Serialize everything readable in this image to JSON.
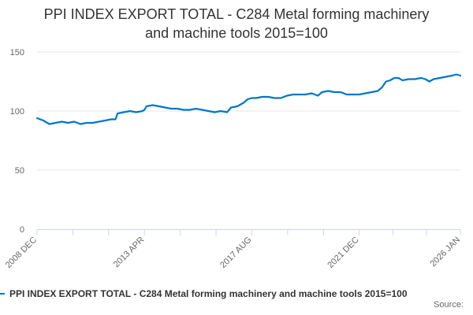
{
  "chart_data": {
    "type": "line",
    "title_lines": [
      "PPI INDEX EXPORT TOTAL - C284 Metal forming machinery",
      "and machine tools 2015=100"
    ],
    "xlabel": "",
    "ylabel": "",
    "ylim": [
      0,
      150
    ],
    "yticks": [
      0,
      50,
      100,
      150
    ],
    "x_start": "2008-12",
    "x_end": "2026-01",
    "xticks": [
      {
        "label": "2008 DEC",
        "date": "2008-12"
      },
      {
        "label": "2013 APR",
        "date": "2013-04"
      },
      {
        "label": "2017 AUG",
        "date": "2017-08"
      },
      {
        "label": "2021 DEC",
        "date": "2021-12"
      },
      {
        "label": "2026 JAN",
        "date": "2026-01"
      }
    ],
    "grid": true,
    "legend_position": "bottom",
    "series": [
      {
        "name": "PPI INDEX EXPORT TOTAL - C284 Metal forming machinery and machine tools 2015=100",
        "color": "#0077c8",
        "points": [
          [
            "2008-12",
            94
          ],
          [
            "2009-03",
            92
          ],
          [
            "2009-06",
            89
          ],
          [
            "2009-09",
            90
          ],
          [
            "2009-12",
            91
          ],
          [
            "2010-03",
            90
          ],
          [
            "2010-06",
            91
          ],
          [
            "2010-09",
            89
          ],
          [
            "2010-12",
            90
          ],
          [
            "2011-03",
            90
          ],
          [
            "2011-06",
            91
          ],
          [
            "2011-09",
            92
          ],
          [
            "2011-12",
            93
          ],
          [
            "2012-02",
            93
          ],
          [
            "2012-03",
            98
          ],
          [
            "2012-06",
            99
          ],
          [
            "2012-09",
            100
          ],
          [
            "2012-12",
            99
          ],
          [
            "2013-03",
            100
          ],
          [
            "2013-04",
            101
          ],
          [
            "2013-05",
            104
          ],
          [
            "2013-08",
            105
          ],
          [
            "2013-11",
            104
          ],
          [
            "2014-02",
            103
          ],
          [
            "2014-05",
            102
          ],
          [
            "2014-08",
            102
          ],
          [
            "2014-11",
            101
          ],
          [
            "2015-02",
            101
          ],
          [
            "2015-05",
            102
          ],
          [
            "2015-08",
            101
          ],
          [
            "2015-11",
            100
          ],
          [
            "2016-02",
            99
          ],
          [
            "2016-05",
            100
          ],
          [
            "2016-08",
            99
          ],
          [
            "2016-10",
            103
          ],
          [
            "2017-01",
            104
          ],
          [
            "2017-04",
            107
          ],
          [
            "2017-06",
            110
          ],
          [
            "2017-08",
            111
          ],
          [
            "2017-10",
            111
          ],
          [
            "2018-01",
            112
          ],
          [
            "2018-04",
            112
          ],
          [
            "2018-07",
            111
          ],
          [
            "2018-10",
            111
          ],
          [
            "2019-01",
            113
          ],
          [
            "2019-04",
            114
          ],
          [
            "2019-07",
            114
          ],
          [
            "2019-10",
            114
          ],
          [
            "2020-01",
            115
          ],
          [
            "2020-04",
            113
          ],
          [
            "2020-06",
            116
          ],
          [
            "2020-09",
            117
          ],
          [
            "2020-12",
            116
          ],
          [
            "2021-03",
            116
          ],
          [
            "2021-06",
            114
          ],
          [
            "2021-09",
            114
          ],
          [
            "2021-12",
            114
          ],
          [
            "2022-03",
            115
          ],
          [
            "2022-06",
            116
          ],
          [
            "2022-09",
            117
          ],
          [
            "2022-11",
            120
          ],
          [
            "2023-01",
            125
          ],
          [
            "2023-03",
            126
          ],
          [
            "2023-05",
            128
          ],
          [
            "2023-07",
            128
          ],
          [
            "2023-09",
            126
          ],
          [
            "2023-12",
            127
          ],
          [
            "2024-03",
            127
          ],
          [
            "2024-06",
            128
          ],
          [
            "2024-08",
            127
          ],
          [
            "2024-10",
            125
          ],
          [
            "2024-12",
            127
          ],
          [
            "2025-03",
            128
          ],
          [
            "2025-06",
            129
          ],
          [
            "2025-09",
            130
          ],
          [
            "2025-11",
            131
          ],
          [
            "2026-01",
            130
          ]
        ]
      }
    ],
    "credits": "Source:"
  }
}
